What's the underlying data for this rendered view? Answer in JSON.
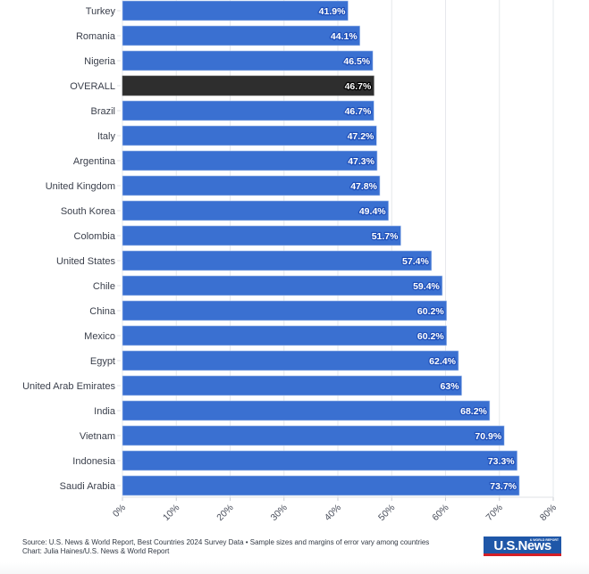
{
  "chart_data": {
    "type": "bar",
    "orientation": "horizontal",
    "title": "",
    "xlabel": "",
    "ylabel": "",
    "xlim": [
      0,
      80
    ],
    "grid": true,
    "value_suffix": "%",
    "x_ticks": [
      "0%",
      "10%",
      "20%",
      "30%",
      "40%",
      "50%",
      "60%",
      "70%",
      "80%"
    ],
    "x_tick_values": [
      0,
      10,
      20,
      30,
      40,
      50,
      60,
      70,
      80
    ],
    "categories": [
      "Turkey",
      "Romania",
      "Nigeria",
      "OVERALL",
      "Brazil",
      "Italy",
      "Argentina",
      "United Kingdom",
      "South Korea",
      "Colombia",
      "United States",
      "Chile",
      "China",
      "Mexico",
      "Egypt",
      "United Arab Emirates",
      "India",
      "Vietnam",
      "Indonesia",
      "Saudi Arabia"
    ],
    "values": [
      41.9,
      44.1,
      46.5,
      46.7,
      46.7,
      47.2,
      47.3,
      47.8,
      49.4,
      51.7,
      57.4,
      59.4,
      60.2,
      60.2,
      62.4,
      63,
      68.2,
      70.9,
      73.3,
      73.7
    ],
    "value_labels": [
      "41.9%",
      "44.1%",
      "46.5%",
      "46.7%",
      "46.7%",
      "47.2%",
      "47.3%",
      "47.8%",
      "49.4%",
      "51.7%",
      "57.4%",
      "59.4%",
      "60.2%",
      "60.2%",
      "62.4%",
      "63%",
      "68.2%",
      "70.9%",
      "73.3%",
      "73.7%"
    ],
    "highlight": [
      "OVERALL"
    ],
    "colors": {
      "bar": "#3a70d1",
      "highlight": "#2e2e2e",
      "grid": "#e6e8ec"
    }
  },
  "footer": {
    "source": "Source: U.S. News & World Report, Best Countries 2024 Survey Data • Sample sizes and margins of error vary among countries",
    "credit": "Chart: Julia Haines/U.S. News & World Report"
  },
  "logo": {
    "text": "U.S.News",
    "tagline": "& WORLD REPORT"
  }
}
